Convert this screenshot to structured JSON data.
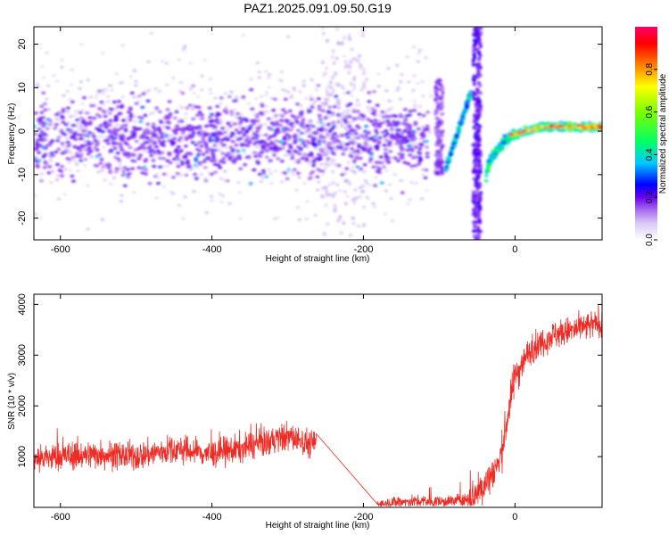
{
  "title": "PAZ1.2025.091.09.50.G19",
  "colors": {
    "snr_line": "#ee2b24",
    "axis": "#000000",
    "background": "#ffffff",
    "colormap": [
      "#ffffff",
      "#d9c7f5",
      "#a66cf0",
      "#6a00f0",
      "#0000ff",
      "#00c8ff",
      "#00ff66",
      "#7cff00",
      "#ffff00",
      "#ff8000",
      "#ff0000",
      "#ff0066"
    ]
  },
  "chart_data": [
    {
      "type": "heatmap",
      "xlabel": "Height of straight line (km)",
      "ylabel": "Frequency (Hz)",
      "xlim": [
        -635,
        115
      ],
      "ylim": [
        -25,
        24
      ],
      "xticks": [
        -600,
        -400,
        -200,
        0
      ],
      "yticks": [
        -20,
        -10,
        0,
        10,
        20
      ],
      "grid": false,
      "colorbar": {
        "label": "Normalized spectral amplitude",
        "range": [
          0,
          1
        ],
        "ticks": [
          0.0,
          0.2,
          0.4,
          0.6,
          0.8
        ]
      },
      "features": [
        {
          "x_range": [
            -635,
            -115
          ],
          "freq_range": [
            -8,
            5
          ],
          "amplitude": 0.2
        },
        {
          "x_range": [
            -105,
            -95
          ],
          "freq_range": [
            -10,
            12
          ],
          "amplitude": 0.15
        },
        {
          "x_points": [
            -92,
            -58
          ],
          "freq_points": [
            -9,
            9
          ],
          "amplitude": 0.4
        },
        {
          "x_range": [
            -55,
            -45
          ],
          "freq_range": [
            -25,
            24
          ],
          "amplitude": 0.2
        },
        {
          "x_points": [
            -38,
            -5
          ],
          "freq_points": [
            -11,
            -1
          ],
          "amplitude": 0.45
        },
        {
          "x_points": [
            -5,
            115
          ],
          "freq_points": [
            -1,
            1
          ],
          "amplitude": 0.8
        }
      ]
    },
    {
      "type": "line",
      "xlabel": "Height of straight line (km)",
      "ylabel": "SNR (10 * v/v)",
      "xlim": [
        -635,
        115
      ],
      "ylim": [
        0,
        4200
      ],
      "xticks": [
        -600,
        -400,
        -200,
        0
      ],
      "yticks": [
        1000,
        2000,
        3000,
        4000
      ],
      "grid": false,
      "series": [
        {
          "x": [
            -635,
            -600,
            -550,
            -500,
            -450,
            -400,
            -350,
            -300,
            -270,
            -262,
            -180,
            -150,
            -100,
            -60,
            -40,
            -20,
            0,
            20,
            50,
            80,
            115
          ],
          "values": [
            950,
            1000,
            1050,
            1000,
            1150,
            1050,
            1200,
            1400,
            1250,
            1300,
            40,
            120,
            110,
            160,
            450,
            900,
            2600,
            3100,
            3400,
            3500,
            3650
          ]
        }
      ]
    }
  ]
}
